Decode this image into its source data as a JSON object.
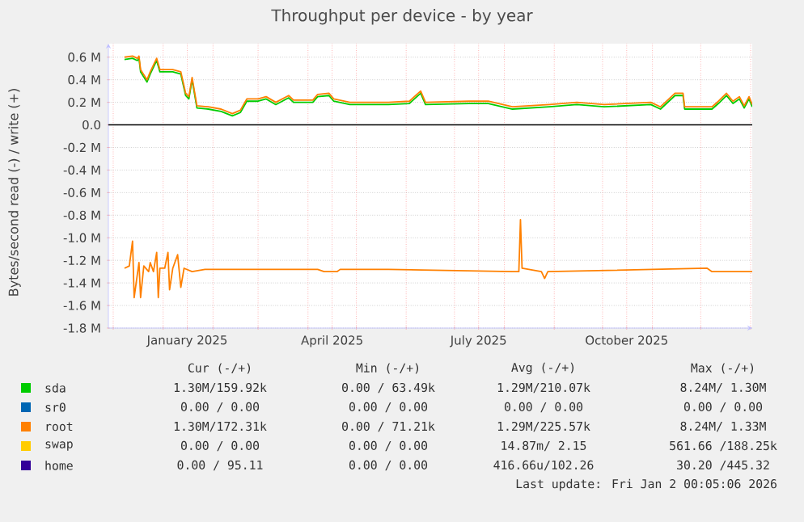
{
  "chart_data": {
    "type": "line",
    "title": "Throughput per device - by year",
    "ylabel": "Bytes/second read (-) / write (+)",
    "xlim": [
      "2024-11-28",
      "2026-01-02"
    ],
    "xticks": [
      {
        "value": "2024-12-01",
        "label": null
      },
      {
        "value": "2025-01-01",
        "label": null
      },
      {
        "value": "2025-01-16",
        "label": "January 2025"
      },
      {
        "value": "2025-02-01",
        "label": null
      },
      {
        "value": "2025-03-01",
        "label": null
      },
      {
        "value": "2025-04-01",
        "label": null
      },
      {
        "value": "2025-04-16",
        "label": "April 2025"
      },
      {
        "value": "2025-05-01",
        "label": null
      },
      {
        "value": "2025-06-01",
        "label": null
      },
      {
        "value": "2025-07-01",
        "label": null
      },
      {
        "value": "2025-07-16",
        "label": "July 2025"
      },
      {
        "value": "2025-08-01",
        "label": null
      },
      {
        "value": "2025-09-01",
        "label": null
      },
      {
        "value": "2025-10-01",
        "label": null
      },
      {
        "value": "2025-10-16",
        "label": "October 2025"
      },
      {
        "value": "2025-11-01",
        "label": null
      },
      {
        "value": "2025-12-01",
        "label": null
      },
      {
        "value": "2026-01-01",
        "label": null
      }
    ],
    "ylim": [
      -1800000,
      720000
    ],
    "yticks": [
      {
        "value": -1800000,
        "label": "-1.8 M"
      },
      {
        "value": -1600000,
        "label": "-1.6 M"
      },
      {
        "value": -1400000,
        "label": "-1.4 M"
      },
      {
        "value": -1200000,
        "label": "-1.2 M"
      },
      {
        "value": -1000000,
        "label": "-1.0 M"
      },
      {
        "value": -800000,
        "label": "-0.8 M"
      },
      {
        "value": -600000,
        "label": "-0.6 M"
      },
      {
        "value": -400000,
        "label": "-0.4 M"
      },
      {
        "value": -200000,
        "label": "-0.2 M"
      },
      {
        "value": 0,
        "label": "0.0"
      },
      {
        "value": 200000,
        "label": "0.2 M"
      },
      {
        "value": 400000,
        "label": "0.4 M"
      },
      {
        "value": 600000,
        "label": "0.6 M"
      }
    ],
    "grid": true,
    "legend": "bottom",
    "line_style": "solid",
    "x": [
      "2024-12-08",
      "2024-12-13",
      "2024-12-16",
      "2024-12-17",
      "2024-12-18",
      "2024-12-22",
      "2024-12-24",
      "2024-12-28",
      "2024-12-30",
      "2025-01-07",
      "2025-01-12",
      "2025-01-15",
      "2025-01-17",
      "2025-01-19",
      "2025-01-22",
      "2025-01-29",
      "2025-02-06",
      "2025-02-13",
      "2025-02-18",
      "2025-02-22",
      "2025-03-01",
      "2025-03-06",
      "2025-03-12",
      "2025-03-20",
      "2025-03-23",
      "2025-04-04",
      "2025-04-07",
      "2025-04-14",
      "2025-04-17",
      "2025-04-27",
      "2025-05-14",
      "2025-05-21",
      "2025-06-03",
      "2025-06-10",
      "2025-06-13",
      "2025-07-10",
      "2025-07-22",
      "2025-08-06",
      "2025-08-29",
      "2025-09-15",
      "2025-10-02",
      "2025-10-31",
      "2025-11-06",
      "2025-11-15",
      "2025-11-20",
      "2025-11-21",
      "2025-12-08",
      "2025-12-12",
      "2025-12-17",
      "2025-12-21",
      "2025-12-25",
      "2025-12-28",
      "2025-12-31",
      "2026-01-02"
    ],
    "series": [
      {
        "name": "sda",
        "color": "#00cc00",
        "values": [
          580000,
          590000,
          570000,
          590000,
          470000,
          380000,
          450000,
          570000,
          470000,
          470000,
          450000,
          260000,
          230000,
          400000,
          150000,
          140000,
          120000,
          80000,
          110000,
          210000,
          210000,
          230000,
          180000,
          240000,
          200000,
          200000,
          250000,
          260000,
          210000,
          180000,
          180000,
          180000,
          190000,
          280000,
          180000,
          190000,
          190000,
          140000,
          160000,
          180000,
          160000,
          180000,
          140000,
          260000,
          260000,
          140000,
          140000,
          190000,
          260000,
          190000,
          230000,
          150000,
          230000,
          160000
        ]
      },
      {
        "name": "sr0",
        "color": "#0066b3",
        "values": [
          null,
          null,
          null,
          null,
          null,
          null,
          null,
          null,
          null,
          null,
          null,
          null,
          null,
          null,
          null,
          null,
          null,
          null,
          null,
          null,
          null,
          null,
          null,
          null,
          null,
          null,
          null,
          null,
          null,
          null,
          null,
          null,
          null,
          null,
          null,
          null,
          null,
          null,
          null,
          null,
          null,
          null,
          null,
          null,
          null,
          null,
          null,
          null,
          null,
          null,
          null,
          null,
          null,
          null
        ]
      },
      {
        "name": "root",
        "color": "#ff8000",
        "values": [
          600000,
          610000,
          590000,
          610000,
          490000,
          400000,
          470000,
          590000,
          490000,
          490000,
          470000,
          280000,
          250000,
          420000,
          170000,
          160000,
          140000,
          100000,
          130000,
          230000,
          230000,
          250000,
          200000,
          260000,
          220000,
          220000,
          270000,
          280000,
          230000,
          200000,
          200000,
          200000,
          210000,
          300000,
          200000,
          210000,
          210000,
          160000,
          180000,
          200000,
          180000,
          200000,
          160000,
          280000,
          280000,
          160000,
          160000,
          210000,
          280000,
          210000,
          250000,
          170000,
          250000,
          180000
        ]
      },
      {
        "name": "swap",
        "color": "#ffcc00",
        "values": [
          null,
          null,
          null,
          null,
          null,
          null,
          null,
          null,
          null,
          null,
          null,
          null,
          null,
          null,
          null,
          null,
          null,
          null,
          null,
          null,
          null,
          null,
          null,
          null,
          null,
          null,
          null,
          null,
          null,
          null,
          null,
          null,
          null,
          null,
          null,
          null,
          null,
          null,
          null,
          null,
          null,
          null,
          null,
          null,
          null,
          null,
          null,
          null,
          null,
          null,
          null,
          null,
          null,
          null
        ]
      },
      {
        "name": "home",
        "color": "#330099",
        "values": [
          null,
          null,
          null,
          null,
          null,
          null,
          null,
          null,
          null,
          null,
          null,
          null,
          null,
          null,
          null,
          null,
          null,
          null,
          null,
          null,
          null,
          null,
          null,
          null,
          null,
          null,
          null,
          null,
          null,
          null,
          null,
          null,
          null,
          null,
          null,
          null,
          null,
          null,
          null,
          null,
          null,
          null,
          null,
          null,
          null,
          null,
          null,
          null,
          null,
          null,
          null,
          null,
          null,
          null
        ]
      },
      {
        "color": "#ff8000",
        "x": [
          "2024-12-08",
          "2024-12-11",
          "2024-12-13",
          "2024-12-14",
          "2024-12-17",
          "2024-12-18",
          "2024-12-20",
          "2024-12-23",
          "2024-12-24",
          "2024-12-26",
          "2024-12-28",
          "2024-12-29",
          "2024-12-30",
          "2025-01-02",
          "2025-01-04",
          "2025-01-05",
          "2025-01-07",
          "2025-01-10",
          "2025-01-12",
          "2025-01-14",
          "2025-01-19",
          "2025-01-27",
          "2025-04-07",
          "2025-04-11",
          "2025-04-19",
          "2025-04-21",
          "2025-05-21",
          "2025-08-06",
          "2025-08-10",
          "2025-08-11",
          "2025-08-12",
          "2025-08-24",
          "2025-08-26",
          "2025-08-28",
          "2025-12-05",
          "2025-12-08",
          "2026-01-02"
        ],
        "values": [
          -1270000,
          -1250000,
          -1030000,
          -1530000,
          -1220000,
          -1530000,
          -1250000,
          -1300000,
          -1220000,
          -1300000,
          -1130000,
          -1530000,
          -1270000,
          -1270000,
          -1130000,
          -1460000,
          -1270000,
          -1150000,
          -1440000,
          -1270000,
          -1300000,
          -1280000,
          -1280000,
          -1300000,
          -1300000,
          -1280000,
          -1280000,
          -1300000,
          -1300000,
          -840000,
          -1270000,
          -1300000,
          -1360000,
          -1300000,
          -1270000,
          -1300000,
          -1300000
        ]
      }
    ],
    "ref_lines": [
      {
        "axis": "y",
        "value": 0,
        "color": "#000000",
        "line_style": "solid"
      }
    ],
    "annotations": [
      "Cur (-/+)",
      "Min (-/+)",
      "Avg (-/+)",
      "Max (-/+)",
      "1.30M/159.92k",
      "0.00 / 63.49k",
      "1.29M/210.07k",
      "8.24M/  1.30M",
      "0.00 /  0.00",
      "0.00 /  0.00",
      "0.00 /  0.00",
      "0.00 /  0.00",
      "1.30M/172.31k",
      "0.00 / 71.21k",
      "1.29M/225.57k",
      "8.24M/  1.33M",
      "0.00 /  0.00",
      "0.00 /  0.00",
      "14.87m/  2.15",
      "561.66 /188.25k",
      "0.00 / 95.11",
      "0.00 /  0.00",
      "416.66u/102.26",
      "30.20 /445.32",
      "Last update: Fri Jan  2 00:05:06 2026"
    ]
  }
}
